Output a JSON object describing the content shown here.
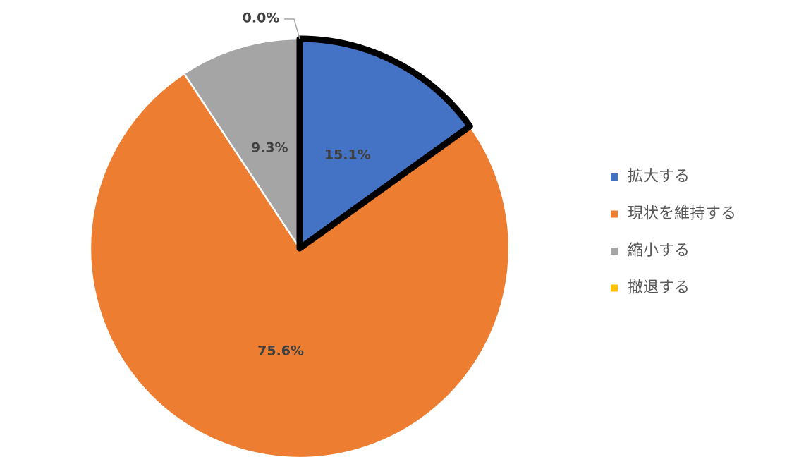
{
  "chart_data": {
    "type": "pie",
    "categories": [
      "拡大する",
      "現状を維持する",
      "縮小する",
      "撤退する"
    ],
    "values": [
      15.1,
      75.6,
      9.3,
      0.0
    ],
    "value_labels": [
      "15.1%",
      "75.6%",
      "9.3%",
      "0.0%"
    ],
    "colors": [
      "#4472c4",
      "#ed7d31",
      "#a5a5a5",
      "#ffc000"
    ],
    "legend": "right"
  }
}
